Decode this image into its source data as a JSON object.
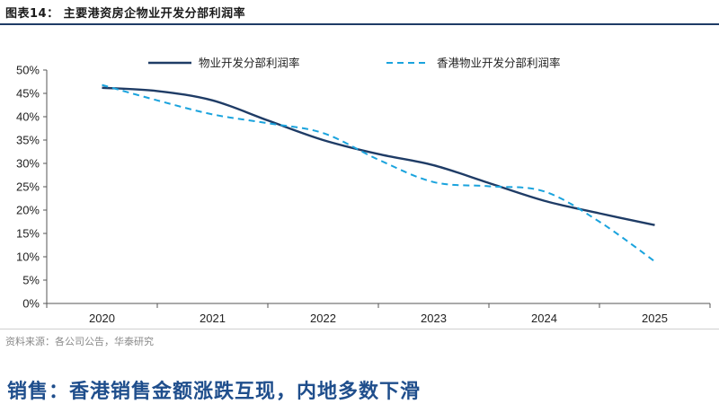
{
  "figure": {
    "title": "图表14：  主要港资房企物业开发分部利润率",
    "source": "资料来源：各公司公告，华泰研究"
  },
  "section_heading": "销售：香港销售金额涨跌互现，内地多数下滑",
  "chart_data": {
    "type": "line",
    "title": "",
    "xlabel": "",
    "ylabel": "",
    "categories": [
      "2020",
      "2021",
      "2022",
      "2023",
      "2024",
      "2025"
    ],
    "x": [
      2020,
      2021,
      2022,
      2023,
      2024,
      2025
    ],
    "ylim": [
      0,
      50
    ],
    "y_ticks": [
      "0%",
      "5%",
      "10%",
      "15%",
      "20%",
      "25%",
      "30%",
      "35%",
      "40%",
      "45%",
      "50%"
    ],
    "grid": false,
    "legend_position": "top",
    "series": [
      {
        "name": "物业开发分部利润率",
        "style": "solid",
        "color": "#1f3c66",
        "values": [
          46.2,
          43.5,
          35.0,
          29.6,
          22.0,
          16.8
        ],
        "curve": [
          [
            2020,
            46.2
          ],
          [
            2020.5,
            45.5
          ],
          [
            2021,
            43.5
          ],
          [
            2021.5,
            39.2
          ],
          [
            2022,
            35.0
          ],
          [
            2022.5,
            32.0
          ],
          [
            2023,
            29.6
          ],
          [
            2023.5,
            25.8
          ],
          [
            2024,
            22.0
          ],
          [
            2024.5,
            19.3
          ],
          [
            2025,
            16.8
          ]
        ]
      },
      {
        "name": "香港物业开发分部利润率",
        "style": "dashed",
        "color": "#1aa3dd",
        "values": [
          46.8,
          40.5,
          36.5,
          26.0,
          24.0,
          9.0
        ],
        "curve": [
          [
            2020,
            46.8
          ],
          [
            2020.5,
            43.5
          ],
          [
            2021,
            40.5
          ],
          [
            2021.5,
            38.6
          ],
          [
            2022,
            36.5
          ],
          [
            2022.5,
            30.8
          ],
          [
            2023,
            26.0
          ],
          [
            2023.5,
            25.1
          ],
          [
            2024,
            24.0
          ],
          [
            2024.5,
            17.5
          ],
          [
            2025,
            9.0
          ]
        ]
      }
    ]
  }
}
